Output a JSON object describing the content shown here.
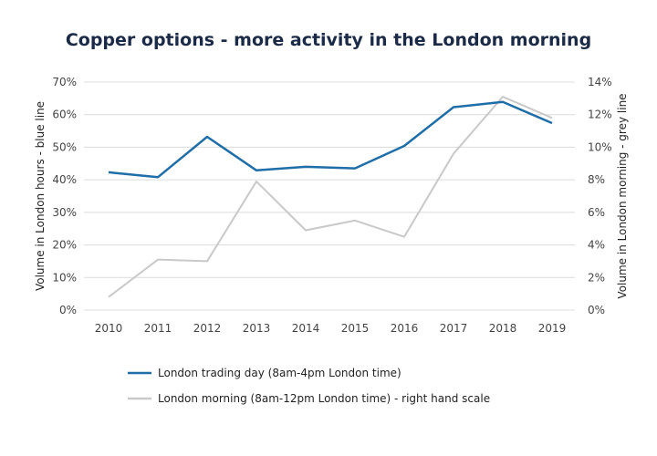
{
  "chart_data": {
    "type": "line",
    "title": "Copper options - more activity in the London morning",
    "categories": [
      "2010",
      "2011",
      "2012",
      "2013",
      "2014",
      "2015",
      "2016",
      "2017",
      "2018",
      "2019"
    ],
    "ylabel": "Volume in London hours - blue line",
    "y2label": "Volume in London morning - grey line",
    "ylim": [
      0,
      70
    ],
    "y2lim": [
      0,
      14
    ],
    "yticks": [
      "0%",
      "10%",
      "20%",
      "30%",
      "40%",
      "50%",
      "60%",
      "70%"
    ],
    "y2ticks": [
      "0%",
      "2%",
      "4%",
      "6%",
      "8%",
      "10%",
      "12%",
      "14%"
    ],
    "grid": true,
    "legend_position": "bottom",
    "series": [
      {
        "name": "London trading day (8am-4pm London time)",
        "axis": "left",
        "color": "#1f6ea8",
        "values": [
          42.3,
          40.8,
          53.2,
          42.9,
          44.0,
          43.5,
          50.4,
          62.3,
          63.9,
          57.4
        ]
      },
      {
        "name": "London morning (8am-12pm London time) - right hand scale",
        "axis": "right",
        "color": "#c9c9c9",
        "values": [
          0.8,
          3.1,
          3.0,
          7.9,
          4.9,
          5.5,
          4.5,
          9.6,
          13.1,
          11.8
        ]
      }
    ]
  }
}
